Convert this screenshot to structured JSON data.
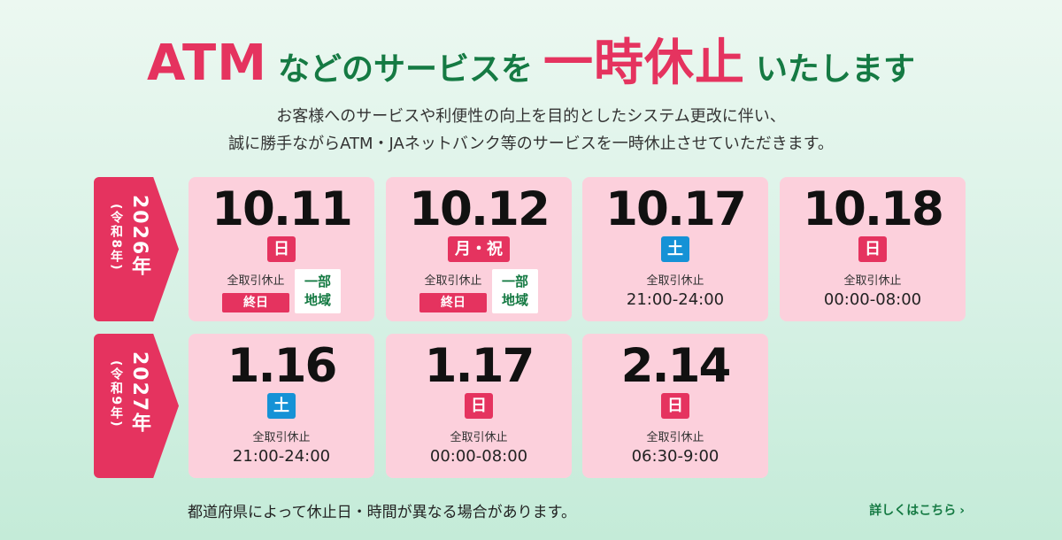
{
  "headline": {
    "part1": "ATM",
    "part2": "などのサービスを",
    "part3": "一時休止",
    "part4": "いたします"
  },
  "subtitle": {
    "line1": "お客様へのサービスや利便性の向上を目的としたシステム更改に伴い、",
    "line2": "誠に勝手ながらATM・JAネットバンク等のサービスを一時休止させていただきます。"
  },
  "years": [
    {
      "main": "2026年",
      "sub": "(令和8年)"
    },
    {
      "main": "2027年",
      "sub": "(令和9年)"
    }
  ],
  "cards": [
    {
      "date": "10.11",
      "day": "日",
      "label": "全取引休止",
      "allday": "終日",
      "partial_line1": "一部",
      "partial_line2": "地域"
    },
    {
      "date": "10.12",
      "day": "月・祝",
      "label": "全取引休止",
      "allday": "終日",
      "partial_line1": "一部",
      "partial_line2": "地域"
    },
    {
      "date": "10.17",
      "day": "土",
      "label": "全取引休止",
      "time": "21:00-24:00"
    },
    {
      "date": "10.18",
      "day": "日",
      "label": "全取引休止",
      "time": "00:00-08:00"
    },
    {
      "date": "1.16",
      "day": "土",
      "label": "全取引休止",
      "time": "21:00-24:00"
    },
    {
      "date": "1.17",
      "day": "日",
      "label": "全取引休止",
      "time": "00:00-08:00"
    },
    {
      "date": "2.14",
      "day": "日",
      "label": "全取引休止",
      "time": "06:30-9:00"
    }
  ],
  "note": "都道府県によって休止日・時間が異なる場合があります。",
  "more_link": "詳しくはこちら",
  "colors": {
    "accent_red": "#e5335f",
    "accent_green": "#157a43",
    "saturday_blue": "#1592d6",
    "card_pink": "#fcd0dc"
  }
}
